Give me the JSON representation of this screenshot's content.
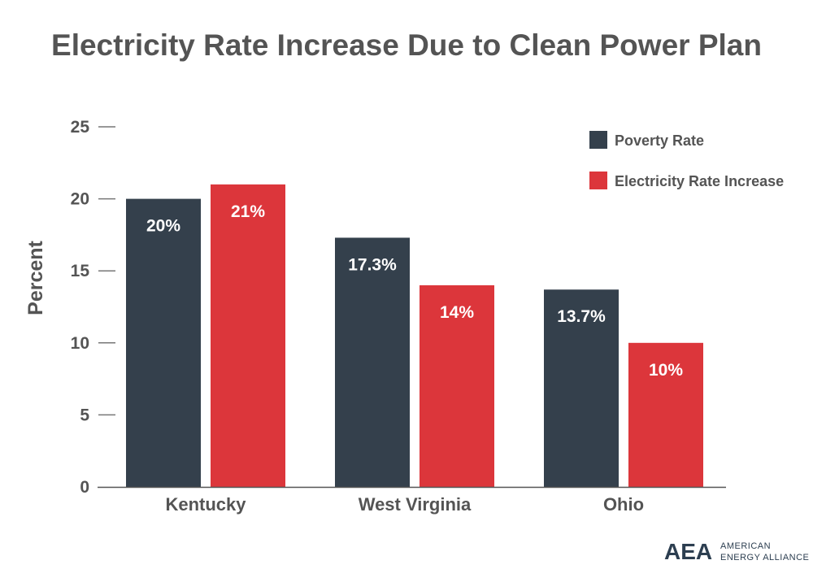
{
  "chart_data": {
    "type": "bar",
    "title": "Electricity Rate Increase Due to Clean Power Plan",
    "xlabel": "",
    "ylabel": "Percent",
    "ylim": [
      0,
      25
    ],
    "yticks": [
      0,
      5,
      10,
      15,
      20,
      25
    ],
    "grid": false,
    "legend_position": "top-right",
    "categories": [
      "Kentucky",
      "West Virginia",
      "Ohio"
    ],
    "series": [
      {
        "name": "Poverty Rate",
        "color": "#34404c",
        "values": [
          20,
          17.3,
          13.7
        ],
        "labels": [
          "20%",
          "17.3%",
          "13.7%"
        ]
      },
      {
        "name": "Electricity Rate Increase",
        "color": "#dc363b",
        "values": [
          21,
          14,
          10
        ],
        "labels": [
          "21%",
          "14%",
          "10%"
        ]
      }
    ]
  },
  "logo": {
    "abbr": "AEA",
    "line1": "AMERICAN",
    "line2": "ENERGY ALLIANCE"
  }
}
